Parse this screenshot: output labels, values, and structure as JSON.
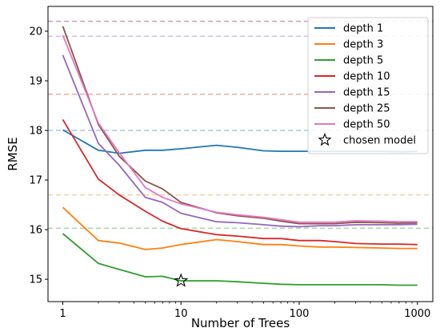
{
  "chart_data": {
    "type": "line",
    "xlabel": "Number of Trees",
    "ylabel": "RMSE",
    "xscale": "log",
    "xlim": [
      0.75,
      1350
    ],
    "ylim": [
      14.55,
      20.5
    ],
    "x_ticks": [
      1,
      10,
      100,
      1000
    ],
    "x_tick_labels": [
      "1",
      "10",
      "100",
      "1000"
    ],
    "y_ticks": [
      15,
      16,
      17,
      18,
      19,
      20
    ],
    "legend_position": "top-right",
    "grid": false,
    "x": [
      1,
      2,
      3,
      5,
      7,
      10,
      20,
      30,
      50,
      70,
      100,
      150,
      200,
      300,
      500,
      700,
      1000
    ],
    "series": [
      {
        "name": "depth 1",
        "color": "#1f77b4",
        "values": [
          18.01,
          17.6,
          17.54,
          17.6,
          17.6,
          17.63,
          17.7,
          17.66,
          17.59,
          17.58,
          17.58,
          17.58,
          17.58,
          17.58,
          17.58,
          17.57,
          17.58
        ],
        "baseline": 18.0
      },
      {
        "name": "depth 3",
        "color": "#ff7f0e",
        "values": [
          16.45,
          15.78,
          15.73,
          15.6,
          15.63,
          15.7,
          15.8,
          15.76,
          15.7,
          15.7,
          15.67,
          15.65,
          15.65,
          15.64,
          15.63,
          15.62,
          15.62
        ],
        "baseline": 16.7
      },
      {
        "name": "depth 5",
        "color": "#2ca02c",
        "values": [
          15.92,
          15.32,
          15.2,
          15.05,
          15.06,
          14.97,
          14.97,
          14.95,
          14.92,
          14.9,
          14.89,
          14.89,
          14.89,
          14.89,
          14.89,
          14.88,
          14.88
        ],
        "baseline": 16.03
      },
      {
        "name": "depth 10",
        "color": "#d62728",
        "values": [
          18.22,
          17.02,
          16.7,
          16.37,
          16.17,
          16.02,
          15.9,
          15.87,
          15.82,
          15.82,
          15.78,
          15.78,
          15.76,
          15.72,
          15.71,
          15.71,
          15.7
        ],
        "baseline": 18.73
      },
      {
        "name": "depth 15",
        "color": "#9467bd",
        "values": [
          19.52,
          17.74,
          17.3,
          16.65,
          16.55,
          16.33,
          16.16,
          16.14,
          16.1,
          16.07,
          16.06,
          16.08,
          16.08,
          16.1,
          16.1,
          16.1,
          16.11
        ],
        "baseline": 19.9
      },
      {
        "name": "depth 25",
        "color": "#8c564b",
        "values": [
          20.1,
          18.12,
          17.48,
          16.98,
          16.82,
          16.55,
          16.34,
          16.28,
          16.23,
          16.17,
          16.12,
          16.12,
          16.12,
          16.15,
          16.14,
          16.13,
          16.14
        ],
        "baseline": 20.2
      },
      {
        "name": "depth 50",
        "color": "#e377c2",
        "values": [
          19.92,
          18.15,
          17.55,
          16.85,
          16.65,
          16.52,
          16.35,
          16.3,
          16.25,
          16.2,
          16.15,
          16.15,
          16.15,
          16.18,
          16.17,
          16.16,
          16.16
        ],
        "baseline": 20.2
      }
    ],
    "marker": {
      "name": "chosen model",
      "x": 10,
      "y": 14.97,
      "symbol": "star"
    }
  }
}
